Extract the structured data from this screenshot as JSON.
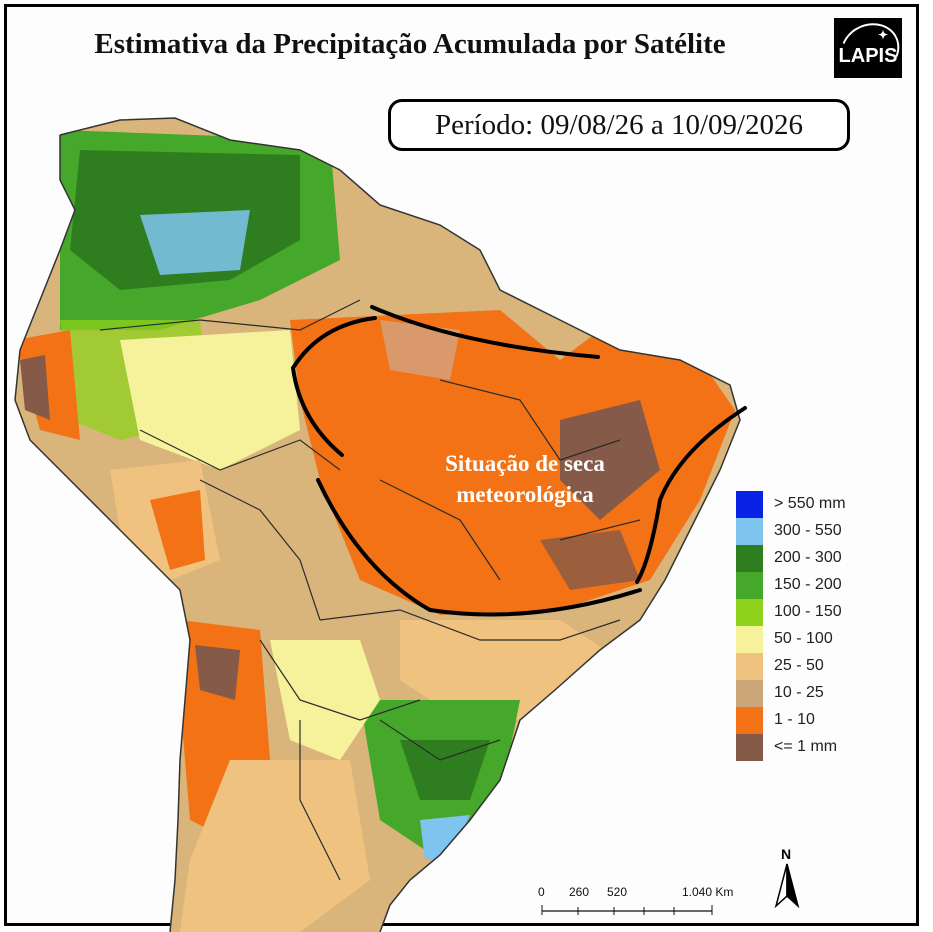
{
  "title": "Estimativa da Precipitação Acumulada por Satélite",
  "logo": {
    "text": "LAPIS",
    "icon": "satellite-icon"
  },
  "period": "Período: 09/08/26 a 10/09/2026",
  "annotation": {
    "line1": "Situação de seca",
    "line2": "meteorológica"
  },
  "legend": [
    {
      "label": "> 550 mm",
      "color": "#0a22e6"
    },
    {
      "label": "300 - 550",
      "color": "#7ec4ee"
    },
    {
      "label": "200 - 300",
      "color": "#2e7d1f"
    },
    {
      "label": "150 - 200",
      "color": "#45a82a"
    },
    {
      "label": "100 - 150",
      "color": "#8fd21c"
    },
    {
      "label": "50 - 100",
      "color": "#f6f29c"
    },
    {
      "label": "25 - 50",
      "color": "#efc27f"
    },
    {
      "label": "10 - 25",
      "color": "#cba679"
    },
    {
      "label": "1 - 10",
      "color": "#f27215"
    },
    {
      "label": "<= 1 mm",
      "color": "#855a48"
    }
  ],
  "scale_bar": {
    "ticks": [
      "0",
      "260",
      "520",
      "1.040 Km"
    ]
  },
  "north_arrow": {
    "label": "N",
    "icon": "north-arrow-icon"
  }
}
